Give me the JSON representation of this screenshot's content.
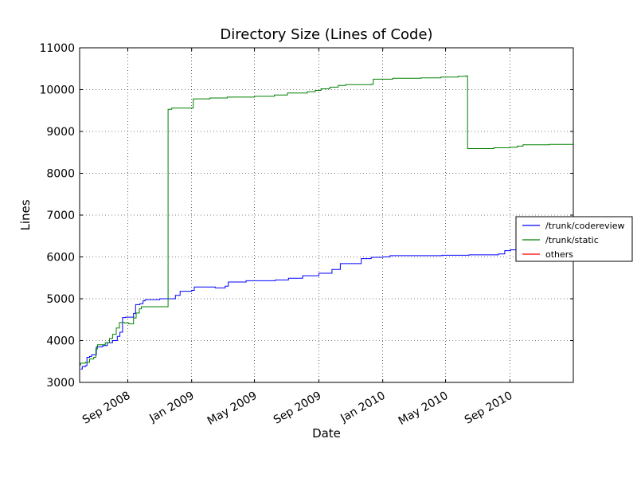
{
  "chart_data": {
    "type": "line",
    "title": "Directory Size (Lines of Code)",
    "xlabel": "Date",
    "ylabel": "Lines",
    "ylim": [
      3000,
      11000
    ],
    "xlim": [
      "2008-06-01",
      "2010-12-31"
    ],
    "grid": true,
    "legend_position": "right",
    "yticks": [
      3000,
      4000,
      5000,
      6000,
      7000,
      8000,
      9000,
      10000,
      11000
    ],
    "xticks": [
      {
        "date": "2008-09-01",
        "label": "Sep 2008"
      },
      {
        "date": "2009-01-01",
        "label": "Jan 2009"
      },
      {
        "date": "2009-05-01",
        "label": "May 2009"
      },
      {
        "date": "2009-09-01",
        "label": "Sep 2009"
      },
      {
        "date": "2010-01-01",
        "label": "Jan 2010"
      },
      {
        "date": "2010-05-01",
        "label": "May 2010"
      },
      {
        "date": "2010-09-01",
        "label": "Sep 2010"
      }
    ],
    "series": [
      {
        "name": "/trunk/codereview",
        "color": "#0000ff",
        "points": [
          [
            "2008-06-03",
            3320
          ],
          [
            "2008-06-06",
            3380
          ],
          [
            "2008-06-12",
            3400
          ],
          [
            "2008-06-15",
            3600
          ],
          [
            "2008-06-20",
            3620
          ],
          [
            "2008-06-24",
            3660
          ],
          [
            "2008-07-03",
            3850
          ],
          [
            "2008-07-15",
            3880
          ],
          [
            "2008-07-24",
            3950
          ],
          [
            "2008-08-03",
            4000
          ],
          [
            "2008-08-12",
            4100
          ],
          [
            "2008-08-17",
            4200
          ],
          [
            "2008-08-22",
            4550
          ],
          [
            "2008-08-28",
            4560
          ],
          [
            "2008-09-08",
            4560
          ],
          [
            "2008-09-12",
            4650
          ],
          [
            "2008-09-16",
            4860
          ],
          [
            "2008-09-24",
            4880
          ],
          [
            "2008-09-30",
            4950
          ],
          [
            "2008-10-04",
            4980
          ],
          [
            "2008-11-01",
            5000
          ],
          [
            "2008-12-01",
            5080
          ],
          [
            "2008-12-10",
            5180
          ],
          [
            "2009-01-01",
            5200
          ],
          [
            "2009-01-06",
            5280
          ],
          [
            "2009-02-15",
            5260
          ],
          [
            "2009-03-06",
            5300
          ],
          [
            "2009-03-12",
            5400
          ],
          [
            "2009-04-15",
            5430
          ],
          [
            "2009-06-10",
            5450
          ],
          [
            "2009-07-05",
            5490
          ],
          [
            "2009-08-01",
            5550
          ],
          [
            "2009-09-01",
            5610
          ],
          [
            "2009-09-26",
            5700
          ],
          [
            "2009-10-12",
            5840
          ],
          [
            "2009-11-21",
            5960
          ],
          [
            "2009-12-10",
            5990
          ],
          [
            "2010-01-01",
            6000
          ],
          [
            "2010-01-15",
            6030
          ],
          [
            "2010-04-01",
            6030
          ],
          [
            "2010-04-24",
            6040
          ],
          [
            "2010-06-15",
            6050
          ],
          [
            "2010-08-10",
            6070
          ],
          [
            "2010-08-22",
            6150
          ],
          [
            "2010-09-02",
            6170
          ],
          [
            "2010-09-15",
            6200
          ]
        ]
      },
      {
        "name": "/trunk/static",
        "color": "#008000",
        "points": [
          [
            "2008-06-01",
            3420
          ],
          [
            "2008-06-03",
            3460
          ],
          [
            "2008-06-12",
            3480
          ],
          [
            "2008-06-20",
            3560
          ],
          [
            "2008-06-28",
            3600
          ],
          [
            "2008-07-02",
            3800
          ],
          [
            "2008-07-05",
            3900
          ],
          [
            "2008-07-20",
            3950
          ],
          [
            "2008-07-28",
            4050
          ],
          [
            "2008-08-03",
            4150
          ],
          [
            "2008-08-10",
            4300
          ],
          [
            "2008-08-16",
            4430
          ],
          [
            "2008-08-26",
            4420
          ],
          [
            "2008-09-03",
            4400
          ],
          [
            "2008-09-12",
            4540
          ],
          [
            "2008-09-17",
            4660
          ],
          [
            "2008-09-23",
            4760
          ],
          [
            "2008-09-27",
            4810
          ],
          [
            "2008-11-15",
            4810
          ],
          [
            "2008-11-17",
            9530
          ],
          [
            "2008-11-24",
            9560
          ],
          [
            "2009-01-01",
            9560
          ],
          [
            "2009-01-04",
            9780
          ],
          [
            "2009-02-05",
            9800
          ],
          [
            "2009-03-10",
            9820
          ],
          [
            "2009-05-01",
            9840
          ],
          [
            "2009-06-08",
            9870
          ],
          [
            "2009-07-03",
            9920
          ],
          [
            "2009-08-10",
            9950
          ],
          [
            "2009-08-25",
            9980
          ],
          [
            "2009-09-05",
            10020
          ],
          [
            "2009-09-22",
            10060
          ],
          [
            "2009-10-08",
            10100
          ],
          [
            "2009-10-22",
            10120
          ],
          [
            "2009-12-10",
            10130
          ],
          [
            "2009-12-14",
            10250
          ],
          [
            "2010-01-20",
            10270
          ],
          [
            "2010-03-15",
            10280
          ],
          [
            "2010-04-22",
            10300
          ],
          [
            "2010-05-25",
            10320
          ],
          [
            "2010-06-09",
            10330
          ],
          [
            "2010-06-12",
            8590
          ],
          [
            "2010-07-15",
            8590
          ],
          [
            "2010-08-01",
            8610
          ],
          [
            "2010-09-01",
            8620
          ],
          [
            "2010-09-15",
            8650
          ],
          [
            "2010-09-26",
            8680
          ],
          [
            "2010-11-15",
            8690
          ],
          [
            "2010-12-31",
            8700
          ]
        ]
      },
      {
        "name": "others",
        "color": "#ff0000",
        "points": []
      }
    ]
  }
}
